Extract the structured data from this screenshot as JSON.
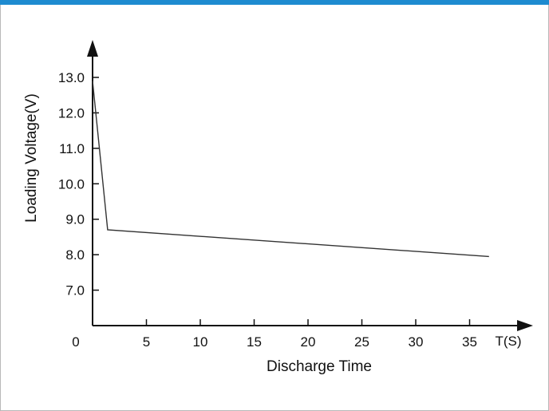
{
  "chart_data": {
    "type": "line",
    "title": "",
    "xlabel": "Discharge Time",
    "ylabel": "Loading Voltage(V)",
    "x_unit_label": "T(S)",
    "origin_label": "0",
    "xlim": [
      0,
      37
    ],
    "ylim": [
      6.0,
      13.0
    ],
    "x_ticks": [
      5,
      10,
      15,
      20,
      25,
      30,
      35
    ],
    "x_tick_labels": [
      "5",
      "10",
      "15",
      "20",
      "25",
      "30",
      "35"
    ],
    "y_ticks": [
      7.0,
      8.0,
      9.0,
      10.0,
      11.0,
      12.0,
      13.0
    ],
    "y_tick_labels": [
      "7.0",
      "8.0",
      "9.0",
      "10.0",
      "11.0",
      "12.0",
      "13.0"
    ],
    "grid": false,
    "series": [
      {
        "x": [
          0,
          1.4,
          36.8
        ],
        "y": [
          12.9,
          8.7,
          7.95
        ],
        "color": "#333333"
      }
    ]
  },
  "colors": {
    "header_bar": "#1e8bd0",
    "axis": "#111111",
    "line": "#333333"
  }
}
